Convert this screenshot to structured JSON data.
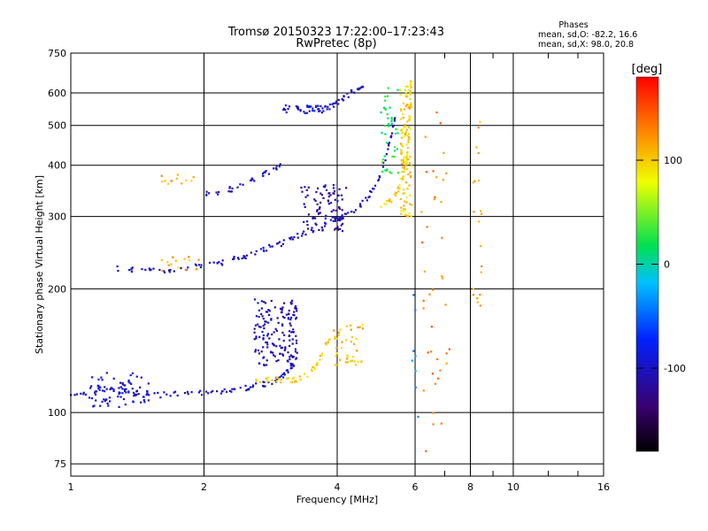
{
  "chart_data": {
    "type": "scatter",
    "title": "Tromsø 20150323 17:22:00–17:23:43",
    "subtitle": "RwPretec (8p)",
    "xlabel": "Frequency [MHz]",
    "ylabel": "Stationary phase Virtual Height [km]",
    "x_scale": "log",
    "y_scale": "log",
    "xlim": [
      1,
      16
    ],
    "ylim": [
      70,
      750
    ],
    "x_ticks": [
      1,
      2,
      4,
      6,
      8,
      10,
      16
    ],
    "y_ticks": [
      75,
      100,
      200,
      300,
      400,
      500,
      600,
      750
    ],
    "grid": true,
    "stats": {
      "title": "Phases",
      "line_o": "mean, sd,O: -82.2, 16.6",
      "line_x": "mean, sd,X:  98.0, 20.8"
    },
    "colorbar": {
      "label": "[deg]",
      "range": [
        -180,
        180
      ],
      "ticks": [
        100,
        0,
        -100
      ],
      "tick_labels": [
        "100",
        "0",
        "-100"
      ]
    },
    "traces": [
      {
        "hue": -100,
        "points": [
          [
            1.0,
            109
          ],
          [
            1.1,
            112
          ],
          [
            1.2,
            115
          ],
          [
            1.3,
            113
          ],
          [
            1.4,
            111
          ],
          [
            1.5,
            110
          ],
          [
            1.7,
            111
          ],
          [
            1.9,
            111
          ],
          [
            2.1,
            112
          ],
          [
            2.3,
            113
          ],
          [
            2.5,
            115
          ],
          [
            2.7,
            117
          ],
          [
            2.85,
            119
          ],
          [
            3.0,
            122
          ],
          [
            3.1,
            126
          ],
          [
            3.2,
            132
          ]
        ]
      },
      {
        "hue": 100,
        "points": [
          [
            2.6,
            120
          ],
          [
            2.8,
            121
          ],
          [
            3.0,
            120
          ],
          [
            3.2,
            120
          ],
          [
            3.4,
            123
          ],
          [
            3.6,
            130
          ],
          [
            3.75,
            145
          ],
          [
            3.85,
            150
          ]
        ]
      },
      {
        "hue": -100,
        "points": [
          [
            1.25,
            225
          ],
          [
            1.4,
            223
          ],
          [
            1.6,
            222
          ],
          [
            1.8,
            224
          ],
          [
            2.0,
            228
          ],
          [
            2.2,
            232
          ],
          [
            2.4,
            238
          ],
          [
            2.6,
            244
          ],
          [
            2.8,
            252
          ],
          [
            3.0,
            258
          ],
          [
            3.2,
            268
          ],
          [
            3.5,
            278
          ],
          [
            3.8,
            288
          ],
          [
            4.1,
            298
          ],
          [
            4.4,
            312
          ],
          [
            4.7,
            335
          ],
          [
            4.95,
            370
          ],
          [
            5.15,
            420
          ],
          [
            5.3,
            470
          ],
          [
            5.42,
            530
          ]
        ]
      },
      {
        "hue": 100,
        "points": [
          [
            5.0,
            320
          ],
          [
            5.3,
            330
          ],
          [
            5.5,
            350
          ],
          [
            5.65,
            380
          ],
          [
            5.75,
            420
          ],
          [
            5.8,
            470
          ],
          [
            5.83,
            530
          ],
          [
            5.85,
            600
          ],
          [
            5.86,
            640
          ]
        ]
      },
      {
        "hue": -100,
        "points": [
          [
            3.7,
            545
          ],
          [
            3.85,
            555
          ],
          [
            4.0,
            570
          ],
          [
            4.2,
            590
          ],
          [
            4.4,
            610
          ],
          [
            4.6,
            625
          ]
        ]
      },
      {
        "hue": -100,
        "points": [
          [
            2.0,
            340
          ],
          [
            2.2,
            345
          ],
          [
            2.4,
            355
          ],
          [
            2.6,
            370
          ],
          [
            2.8,
            385
          ],
          [
            3.0,
            405
          ]
        ]
      }
    ],
    "clusters": [
      {
        "hue": -110,
        "x": [
          2.6,
          3.25
        ],
        "y": [
          130,
          190
        ],
        "n": 160
      },
      {
        "hue": -115,
        "x": [
          3.3,
          4.2
        ],
        "y": [
          275,
          360
        ],
        "n": 90
      },
      {
        "hue": 105,
        "x": [
          3.9,
          4.6
        ],
        "y": [
          130,
          165
        ],
        "n": 40
      },
      {
        "hue": -95,
        "x": [
          1.1,
          1.5
        ],
        "y": [
          103,
          125
        ],
        "n": 70
      },
      {
        "hue": -100,
        "x": [
          3.0,
          3.7
        ],
        "y": [
          535,
          560
        ],
        "n": 35
      },
      {
        "hue": 100,
        "x": [
          5.55,
          5.9
        ],
        "y": [
          300,
          640
        ],
        "n": 110
      },
      {
        "hue": 20,
        "x": [
          5.0,
          5.5
        ],
        "y": [
          380,
          620
        ],
        "n": 40
      },
      {
        "hue": 110,
        "x": [
          1.6,
          2.0
        ],
        "y": [
          220,
          240
        ],
        "n": 15
      },
      {
        "hue": 110,
        "x": [
          1.6,
          1.9
        ],
        "y": [
          360,
          380
        ],
        "n": 12
      },
      {
        "hue": 130,
        "x": [
          6.2,
          7.2
        ],
        "y": [
          80,
          620
        ],
        "n": 40
      },
      {
        "hue": 110,
        "x": [
          8.1,
          8.5
        ],
        "y": [
          180,
          560
        ],
        "n": 20
      },
      {
        "hue": -30,
        "x": [
          5.9,
          6.1
        ],
        "y": [
          95,
          200
        ],
        "n": 8
      }
    ]
  }
}
